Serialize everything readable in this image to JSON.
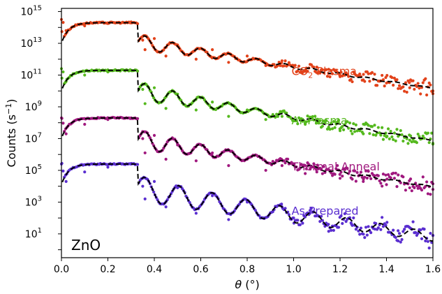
{
  "chart_data": {
    "type": "scatter",
    "panel_label": "ZnO",
    "xlabel": {
      "symbol": "θ",
      "unit": " (°)"
    },
    "ylabel": {
      "pre": "Counts (s",
      "sup": "−1",
      "post": ")"
    },
    "xlim": [
      0,
      1.6
    ],
    "ylim_log10": [
      -0.5,
      15.2
    ],
    "y_scale": "log",
    "x_ticks": [
      {
        "value": 0.0,
        "label": "0.0"
      },
      {
        "value": 0.2,
        "label": "0.2"
      },
      {
        "value": 0.4,
        "label": "0.4"
      },
      {
        "value": 0.6,
        "label": "0.6"
      },
      {
        "value": 0.8,
        "label": "0.8"
      },
      {
        "value": 1.0,
        "label": "1.0"
      },
      {
        "value": 1.2,
        "label": "1.2"
      },
      {
        "value": 1.4,
        "label": "1.4"
      },
      {
        "value": 1.6,
        "label": "1.6"
      }
    ],
    "y_ticks": [
      {
        "exp": 1,
        "base": "10",
        "sup": "1"
      },
      {
        "exp": 3,
        "base": "10",
        "sup": "3"
      },
      {
        "exp": 5,
        "base": "10",
        "sup": "5"
      },
      {
        "exp": 7,
        "base": "10",
        "sup": "7"
      },
      {
        "exp": 9,
        "base": "10",
        "sup": "9"
      },
      {
        "exp": 11,
        "base": "10",
        "sup": "11"
      },
      {
        "exp": 13,
        "base": "10",
        "sup": "13"
      },
      {
        "exp": 15,
        "base": "10",
        "sup": "15"
      }
    ],
    "grid": false,
    "fit_line_style": "black dashed",
    "series": [
      {
        "id": "co2",
        "label_main": "CO",
        "label_sub": "2",
        "label_rest": " Plasma",
        "color": "#e2421a",
        "label_at": {
          "x": 1.0,
          "y_log10": 11.0
        },
        "plateau_log10": 14.3,
        "end_log10": 10.0,
        "dip_depth": 0.9,
        "points": [
          [
            0.0,
            14.5
          ],
          [
            0.02,
            13.8
          ],
          [
            0.1,
            14.1
          ],
          [
            0.2,
            14.25
          ],
          [
            0.3,
            14.35
          ],
          [
            0.35,
            13.2
          ],
          [
            0.36,
            12.6
          ],
          [
            0.4,
            13.3
          ],
          [
            0.45,
            12.2
          ],
          [
            0.5,
            12.9
          ],
          [
            0.58,
            12.0
          ],
          [
            0.65,
            12.6
          ],
          [
            0.72,
            11.8
          ],
          [
            0.8,
            12.2
          ],
          [
            0.88,
            11.6
          ],
          [
            0.95,
            11.9
          ],
          [
            1.05,
            11.3
          ],
          [
            1.1,
            11.5
          ],
          [
            1.2,
            10.9
          ],
          [
            1.3,
            10.7
          ],
          [
            1.4,
            10.5
          ],
          [
            1.5,
            10.2
          ],
          [
            1.6,
            10.0
          ]
        ]
      },
      {
        "id": "ar",
        "label_main": "Ar Plasma",
        "label_sub": "",
        "label_rest": "",
        "color": "#55b91e",
        "label_at": {
          "x": 1.0,
          "y_log10": 7.9
        },
        "plateau_log10": 11.3,
        "end_log10": 6.7,
        "dip_depth": 1.1,
        "points": [
          [
            0.0,
            11.4
          ],
          [
            0.02,
            10.6
          ],
          [
            0.1,
            11.0
          ],
          [
            0.2,
            11.2
          ],
          [
            0.3,
            11.3
          ],
          [
            0.35,
            10.1
          ],
          [
            0.36,
            9.2
          ],
          [
            0.4,
            10.2
          ],
          [
            0.45,
            8.9
          ],
          [
            0.5,
            9.8
          ],
          [
            0.58,
            8.8
          ],
          [
            0.65,
            9.3
          ],
          [
            0.72,
            8.4
          ],
          [
            0.8,
            8.8
          ],
          [
            0.88,
            8.2
          ],
          [
            0.95,
            8.4
          ],
          [
            1.05,
            7.9
          ],
          [
            1.1,
            8.0
          ],
          [
            1.2,
            7.5
          ],
          [
            1.3,
            7.3
          ],
          [
            1.4,
            7.1
          ],
          [
            1.5,
            6.9
          ],
          [
            1.6,
            6.7
          ]
        ]
      },
      {
        "id": "thermal",
        "label_main": "Thermal Anneal",
        "label_sub": "",
        "label_rest": "",
        "color": "#a0197f",
        "label_at": {
          "x": 1.0,
          "y_log10": 5.0
        },
        "plateau_log10": 8.3,
        "end_log10": 3.8,
        "dip_depth": 1.2,
        "points": [
          [
            0.0,
            8.3
          ],
          [
            0.02,
            7.3
          ],
          [
            0.1,
            7.9
          ],
          [
            0.2,
            8.2
          ],
          [
            0.3,
            8.3
          ],
          [
            0.35,
            7.0
          ],
          [
            0.36,
            6.1
          ],
          [
            0.4,
            7.2
          ],
          [
            0.45,
            5.7
          ],
          [
            0.5,
            6.6
          ],
          [
            0.58,
            5.6
          ],
          [
            0.65,
            6.1
          ],
          [
            0.72,
            5.3
          ],
          [
            0.8,
            5.7
          ],
          [
            0.88,
            5.0
          ],
          [
            0.95,
            5.3
          ],
          [
            1.05,
            4.8
          ],
          [
            1.1,
            4.9
          ],
          [
            1.2,
            4.5
          ],
          [
            1.3,
            4.3
          ],
          [
            1.4,
            4.1
          ],
          [
            1.5,
            3.9
          ],
          [
            1.6,
            3.8
          ]
        ]
      },
      {
        "id": "asprep",
        "label_main": "As Prepared",
        "label_sub": "",
        "label_rest": "",
        "color": "#5a2ed0",
        "label_at": {
          "x": 1.0,
          "y_log10": 2.2
        },
        "plateau_log10": 5.4,
        "end_log10": 0.9,
        "dip_depth": 1.5,
        "points": [
          [
            0.0,
            5.4
          ],
          [
            0.02,
            4.3
          ],
          [
            0.1,
            4.9
          ],
          [
            0.2,
            5.2
          ],
          [
            0.3,
            5.4
          ],
          [
            0.35,
            4.0
          ],
          [
            0.36,
            3.2
          ],
          [
            0.4,
            4.3
          ],
          [
            0.45,
            2.7
          ],
          [
            0.5,
            3.9
          ],
          [
            0.58,
            2.3
          ],
          [
            0.65,
            3.4
          ],
          [
            0.72,
            1.9
          ],
          [
            0.8,
            3.0
          ],
          [
            0.87,
            2.0
          ],
          [
            0.95,
            2.7
          ],
          [
            1.0,
            2.0
          ],
          [
            1.07,
            2.3
          ],
          [
            1.15,
            1.6
          ],
          [
            1.25,
            1.6
          ],
          [
            1.35,
            1.3
          ],
          [
            1.45,
            1.2
          ],
          [
            1.6,
            0.9
          ]
        ]
      }
    ]
  }
}
